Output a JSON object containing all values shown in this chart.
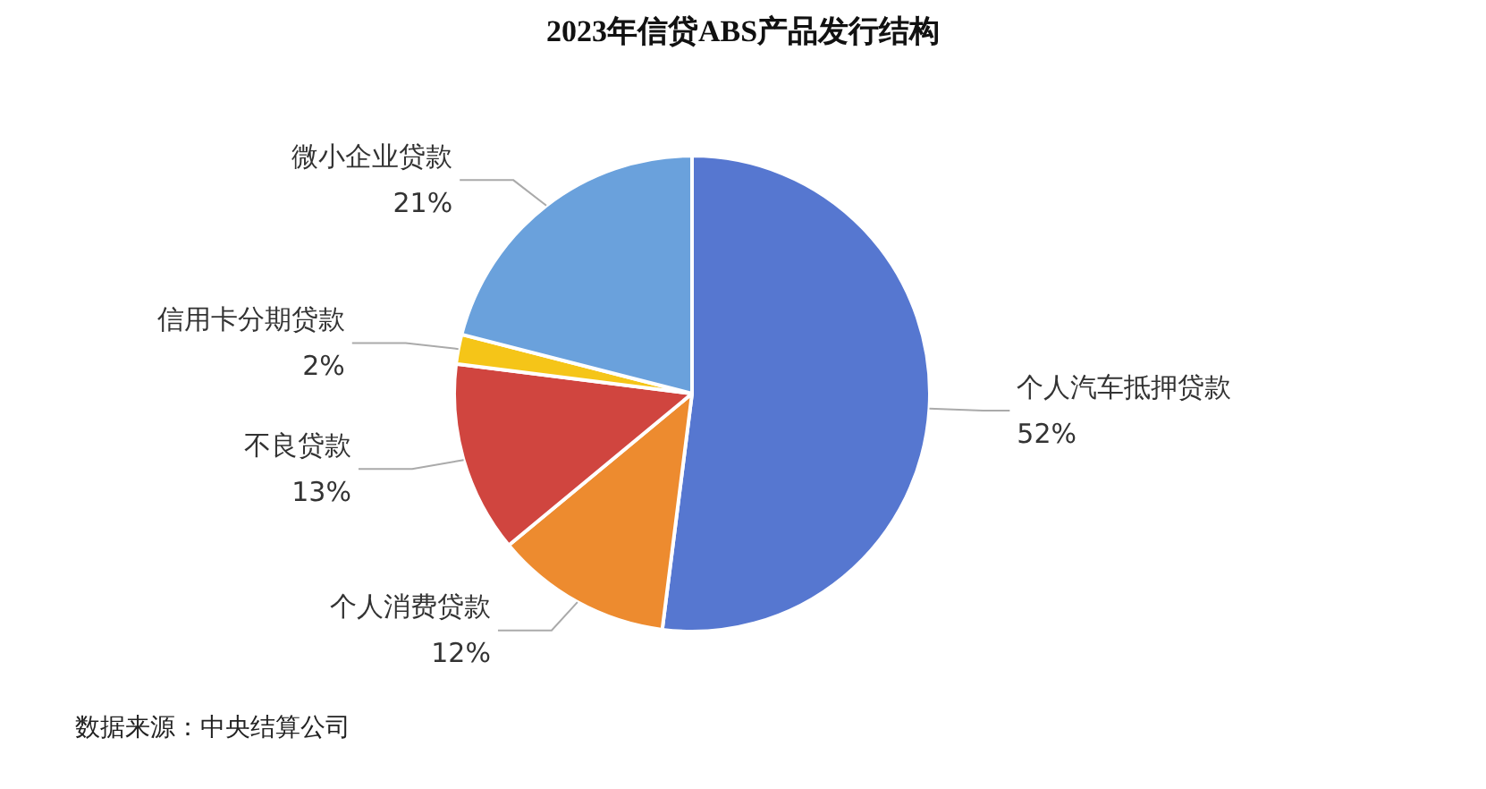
{
  "chart_data": {
    "type": "pie",
    "title": "2023年信贷ABS产品发行结构",
    "categories": [
      "个人汽车抵押贷款",
      "个人消费贷款",
      "不良贷款",
      "信用卡分期贷款",
      "微小企业贷款"
    ],
    "values": [
      52,
      12,
      13,
      2,
      21
    ],
    "value_labels": [
      "52%",
      "12%",
      "13%",
      "2%",
      "21%"
    ],
    "colors": [
      "#5677d0",
      "#ed8b2f",
      "#d0453f",
      "#f5c518",
      "#6aa1dc"
    ],
    "legend": false,
    "annotations": [
      "数据来源：中央结算公司"
    ]
  }
}
